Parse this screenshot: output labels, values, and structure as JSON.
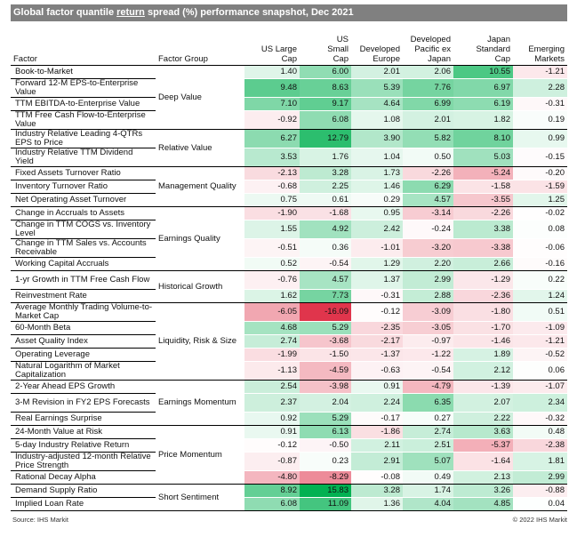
{
  "title": {
    "pre": "Global factor quantile ",
    "underlined": "return",
    "post": " spread (%) performance snapshot, Dec 2021"
  },
  "footer": {
    "source": "Source: IHS Markit",
    "copyright": "© 2022 IHS Markit"
  },
  "colors": {
    "positive": "#00b050",
    "negative": "#e0354c",
    "header_bg": "#808080"
  },
  "chart_data": {
    "type": "table",
    "title": "Global factor quantile return spread (%) performance snapshot, Dec 2021",
    "columns": [
      "Factor",
      "Factor Group",
      "US Large Cap",
      "US Small Cap",
      "Developed Europe",
      "Developed Pacific ex Japan",
      "Japan Standard Cap",
      "Emerging Markets"
    ],
    "groups": [
      {
        "name": "Deep Value",
        "rows": [
          {
            "factor": "Book-to-Market",
            "values": [
              1.4,
              6.0,
              2.01,
              2.06,
              10.55,
              -1.21
            ]
          },
          {
            "factor": "Forward 12-M EPS-to-Enterprise Value",
            "values": [
              9.48,
              8.63,
              5.39,
              7.76,
              6.97,
              2.28
            ]
          },
          {
            "factor": "TTM EBITDA-to-Enterprise Value",
            "values": [
              7.1,
              9.17,
              4.64,
              6.99,
              6.19,
              -0.31
            ]
          },
          {
            "factor": "TTM Free Cash Flow-to-Enterprise Value",
            "values": [
              -0.92,
              6.08,
              1.08,
              2.01,
              1.82,
              0.19
            ]
          }
        ]
      },
      {
        "name": "Relative Value",
        "rows": [
          {
            "factor": "Industry Relative Leading 4-QTRs EPS to Price",
            "values": [
              6.27,
              12.79,
              3.9,
              5.82,
              8.1,
              0.99
            ]
          },
          {
            "factor": "Industry Relative TTM Dividend Yield",
            "values": [
              3.53,
              1.76,
              1.04,
              0.5,
              5.03,
              -0.15
            ]
          }
        ]
      },
      {
        "name": "Management Quality",
        "rows": [
          {
            "factor": "Fixed Assets Turnover Ratio",
            "values": [
              -2.13,
              3.28,
              1.73,
              -2.26,
              -5.24,
              -0.2
            ]
          },
          {
            "factor": "Inventory Turnover Ratio",
            "values": [
              -0.68,
              2.25,
              1.46,
              6.29,
              -1.58,
              -1.59
            ]
          },
          {
            "factor": "Net Operating Asset Turnover",
            "values": [
              0.75,
              0.61,
              0.29,
              4.57,
              -3.55,
              1.25
            ]
          }
        ]
      },
      {
        "name": "Earnings Quality",
        "rows": [
          {
            "factor": "Change in Accruals to Assets",
            "values": [
              -1.9,
              -1.68,
              0.95,
              -3.14,
              -2.26,
              -0.02
            ]
          },
          {
            "factor": "Change in TTM COGS vs. Inventory Level",
            "values": [
              1.55,
              4.92,
              2.42,
              -0.24,
              3.38,
              0.08
            ]
          },
          {
            "factor": "Change in TTM Sales vs. Accounts Receivable",
            "values": [
              -0.51,
              0.36,
              -1.01,
              -3.2,
              -3.38,
              -0.06
            ]
          },
          {
            "factor": "Working Capital Accruals",
            "values": [
              0.52,
              -0.54,
              1.29,
              2.2,
              2.66,
              -0.16
            ]
          }
        ]
      },
      {
        "name": "Historical Growth",
        "rows": [
          {
            "factor": "1-yr Growth in TTM Free Cash Flow",
            "values": [
              -0.76,
              4.57,
              1.37,
              2.99,
              -1.29,
              0.22
            ]
          },
          {
            "factor": "Reinvestment Rate",
            "values": [
              1.62,
              7.73,
              -0.31,
              2.88,
              -2.36,
              1.24
            ]
          }
        ]
      },
      {
        "name": "Liquidity, Risk & Size",
        "rows": [
          {
            "factor": "Average Monthly Trading Volume-to-Market Cap",
            "values": [
              -6.05,
              -16.09,
              -0.12,
              -3.09,
              -1.8,
              0.51
            ]
          },
          {
            "factor": "60-Month Beta",
            "values": [
              4.68,
              5.29,
              -2.35,
              -3.05,
              -1.7,
              -1.09
            ]
          },
          {
            "factor": "Asset Quality Index",
            "values": [
              2.74,
              -3.68,
              -2.17,
              -0.97,
              -1.46,
              -1.21
            ]
          },
          {
            "factor": "Operating Leverage",
            "values": [
              -1.99,
              -1.5,
              -1.37,
              -1.22,
              1.89,
              -0.52
            ]
          },
          {
            "factor": "Natural Logarithm of Market Capitalization",
            "values": [
              -1.13,
              -4.59,
              -0.63,
              -0.54,
              2.12,
              0.06
            ]
          }
        ]
      },
      {
        "name": "Earnings Momentum",
        "rows": [
          {
            "factor": "2-Year Ahead EPS Growth",
            "values": [
              2.54,
              -3.98,
              0.91,
              -4.79,
              -1.39,
              -1.07
            ]
          },
          {
            "factor": "3-M Revision in FY2 EPS Forecasts",
            "values": [
              2.37,
              2.04,
              2.24,
              6.35,
              2.07,
              2.34
            ]
          },
          {
            "factor": "Real Earnings Surprise",
            "values": [
              0.92,
              5.29,
              -0.17,
              0.27,
              2.22,
              -0.32
            ]
          }
        ]
      },
      {
        "name": "Price Momentum",
        "rows": [
          {
            "factor": "24-Month Value at Risk",
            "values": [
              0.91,
              6.13,
              -1.86,
              2.74,
              3.63,
              0.48
            ]
          },
          {
            "factor": "5-day Industry Relative Return",
            "values": [
              -0.12,
              -0.5,
              2.11,
              2.51,
              -5.37,
              -2.38
            ]
          },
          {
            "factor": "Industry-adjusted 12-month Relative Price Strength",
            "values": [
              -0.87,
              0.23,
              2.91,
              5.07,
              -1.64,
              1.81
            ]
          },
          {
            "factor": "Rational Decay Alpha",
            "values": [
              -4.8,
              -8.29,
              -0.08,
              0.49,
              2.13,
              2.99
            ]
          }
        ]
      },
      {
        "name": "Short Sentiment",
        "rows": [
          {
            "factor": "Demand Supply Ratio",
            "values": [
              8.92,
              15.83,
              3.28,
              1.74,
              3.26,
              -0.88
            ]
          },
          {
            "factor": "Implied Loan Rate",
            "values": [
              6.08,
              11.09,
              1.36,
              4.04,
              4.85,
              0.04
            ]
          }
        ]
      }
    ]
  }
}
